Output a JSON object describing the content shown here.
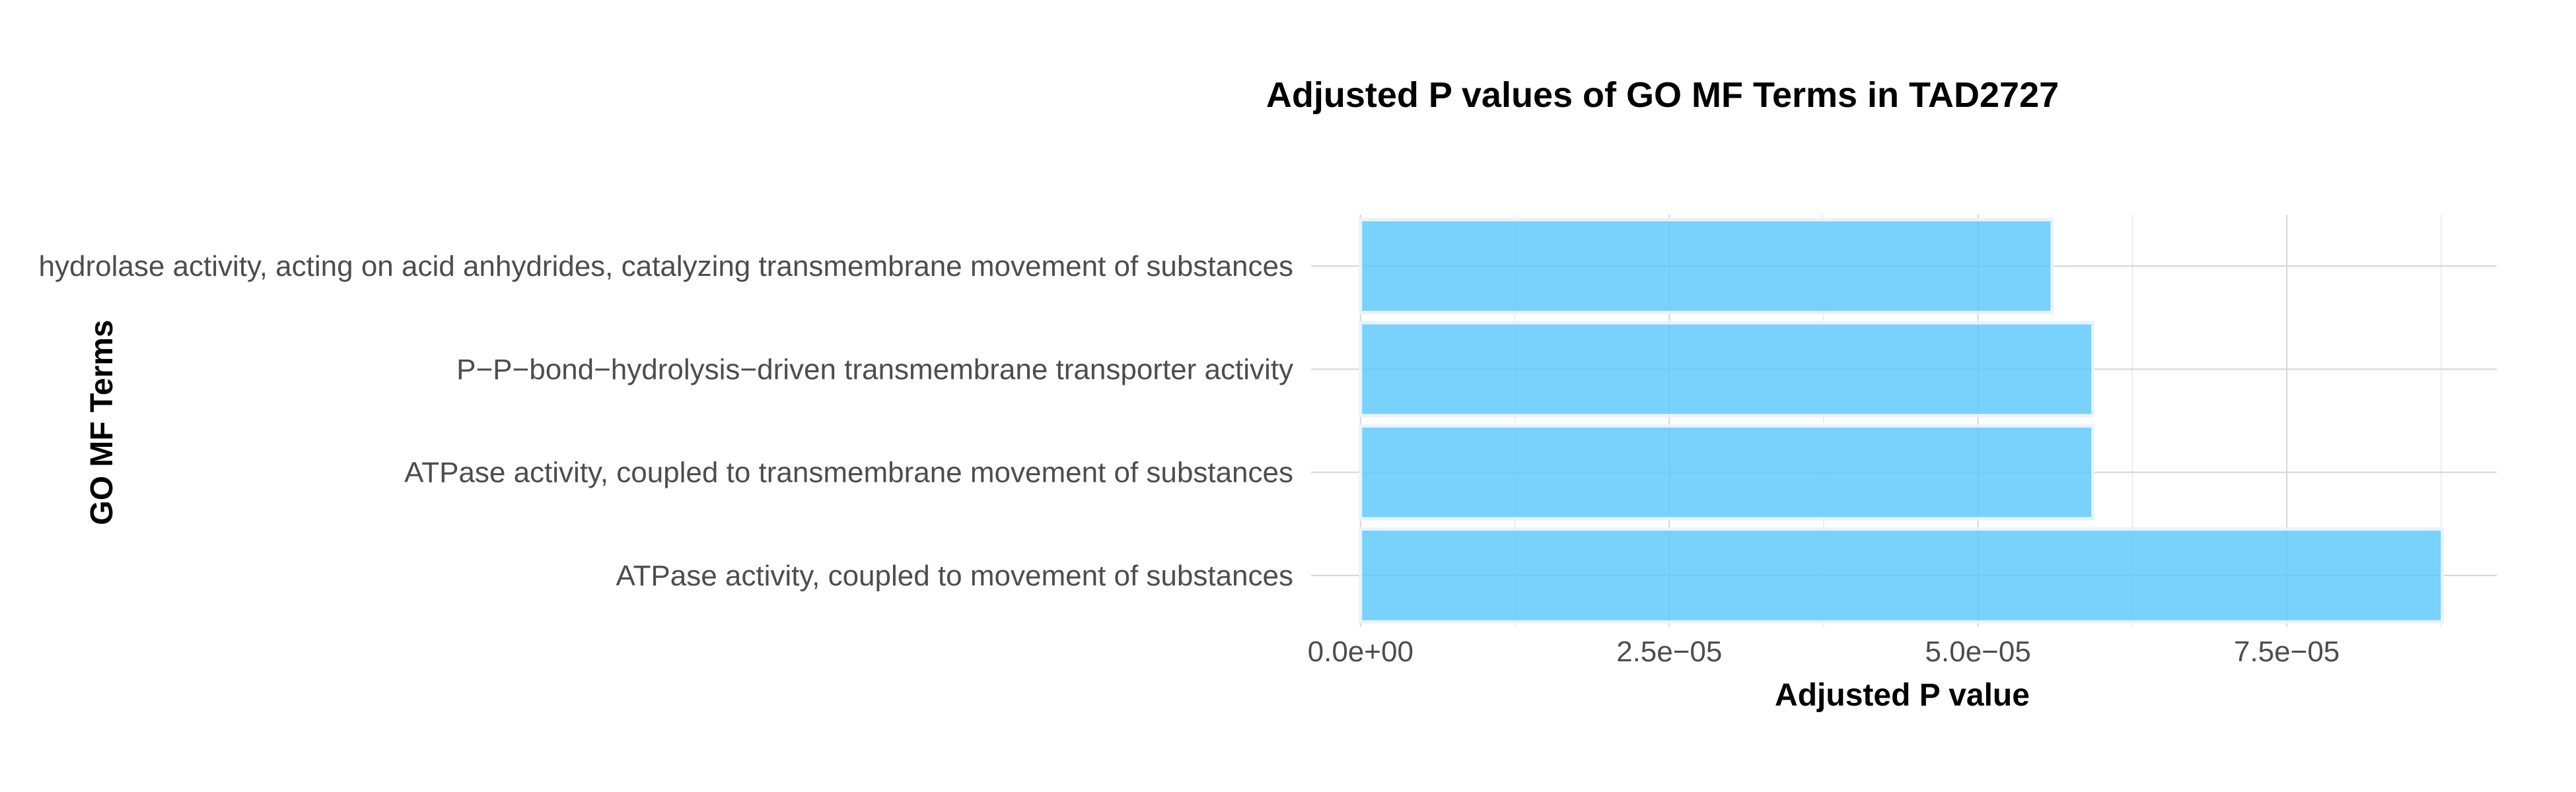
{
  "chart_data": {
    "type": "bar",
    "orientation": "horizontal",
    "title": "Adjusted P values of GO MF Terms in TAD2727",
    "xlabel": "Adjusted P value",
    "ylabel": "GO MF Terms",
    "categories": [
      "hydrolase activity, acting on acid anhydrides, catalyzing transmembrane movement of substances",
      "P−P−bond−hydrolysis−driven transmembrane transporter activity",
      "ATPase activity, coupled to transmembrane movement of substances",
      "ATPase activity, coupled to movement of substances"
    ],
    "values": [
      5.6e-05,
      5.93e-05,
      5.93e-05,
      8.76e-05
    ],
    "xlim": [
      -4e-06,
      9.2e-05
    ],
    "x_ticks": [
      0,
      2.5e-05,
      5e-05,
      7.5e-05
    ],
    "x_tick_labels": [
      "0.0e+00",
      "2.5e−05",
      "5.0e−05",
      "7.5e−05"
    ],
    "x_minor_ticks": [
      1.25e-05,
      3.75e-05,
      6.25e-05,
      8.75e-05
    ],
    "grid": true,
    "bar_color": "#5bc8fb"
  }
}
